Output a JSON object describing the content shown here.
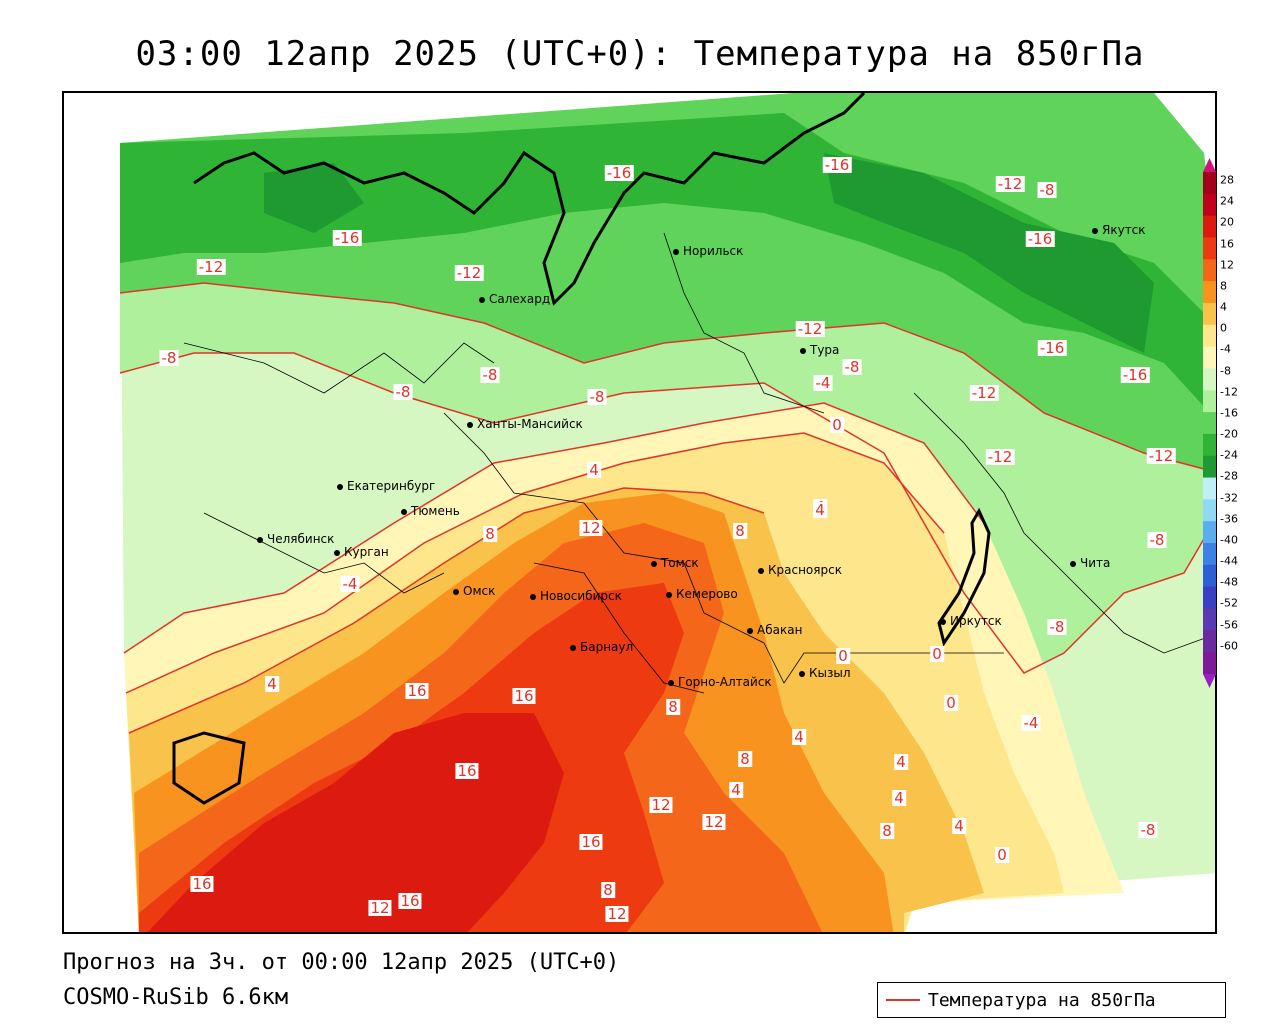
{
  "title": "03:00 12апр 2025 (UTC+0): Температура на 850гПа",
  "footer": {
    "forecast": "Прогноз на 3ч. от 00:00 12апр 2025 (UTC+0)",
    "model": "COSMO-RuSib 6.6км"
  },
  "legend": {
    "label": "Температура на 850гПа",
    "line_color": "#e0342a"
  },
  "colorbar": {
    "ticks": [
      "28",
      "24",
      "20",
      "16",
      "12",
      "8",
      "4",
      "0",
      "-4",
      "-8",
      "-12",
      "-16",
      "-20",
      "-24",
      "-28",
      "-32",
      "-36",
      "-40",
      "-44",
      "-48",
      "-52",
      "-56",
      "-60"
    ],
    "colors": [
      "#a3001c",
      "#c0001a",
      "#dd1a10",
      "#ee3a10",
      "#f4661a",
      "#f8931f",
      "#f9c24a",
      "#fde68c",
      "#fff6b8",
      "#d6f7c2",
      "#aef09c",
      "#5fd35a",
      "#2fb436",
      "#1f9a30",
      "#bfeff8",
      "#8fd9f4",
      "#5aaef0",
      "#3c82e6",
      "#2d5fd6",
      "#3a3fc4",
      "#5a3ab0",
      "#6c2aa0",
      "#7c1a98"
    ],
    "arrow_top_color": "#d0127a",
    "arrow_bottom_color": "#9a1ec8"
  },
  "cities": [
    {
      "name": "Норильск"
    },
    {
      "name": "Якутск"
    },
    {
      "name": "Салехард"
    },
    {
      "name": "Тура"
    },
    {
      "name": "Ханты-Мансийск"
    },
    {
      "name": "Екатеринбург"
    },
    {
      "name": "Тюмень"
    },
    {
      "name": "Челябинск"
    },
    {
      "name": "Курган"
    },
    {
      "name": "Омск"
    },
    {
      "name": "Новосибирск"
    },
    {
      "name": "Томск"
    },
    {
      "name": "Кемерово"
    },
    {
      "name": "Красноярск"
    },
    {
      "name": "Барнаул"
    },
    {
      "name": "Абакан"
    },
    {
      "name": "Горно-Алтайск"
    },
    {
      "name": "Кызыл"
    },
    {
      "name": "Иркутск"
    },
    {
      "name": "Чита"
    }
  ],
  "isotherm_labels": [
    "-16",
    "-16",
    "-12",
    "-16",
    "-12",
    "-8",
    "-12",
    "-16",
    "-12",
    "-12",
    "-16",
    "-16",
    "-8",
    "-4",
    "-8",
    "-8",
    "-8",
    "-12",
    "-12",
    "0",
    "4",
    "4",
    "-8",
    "-4",
    "12",
    "8",
    "8",
    "4",
    "0",
    "0",
    "-8",
    "-8",
    "4",
    "16",
    "16",
    "-4",
    "16",
    "8",
    "4",
    "0",
    "12",
    "12",
    "4",
    "4",
    "8",
    "4",
    "8",
    "4",
    "0",
    "-8",
    "16",
    "12",
    "16",
    "8",
    "12",
    "16"
  ]
}
